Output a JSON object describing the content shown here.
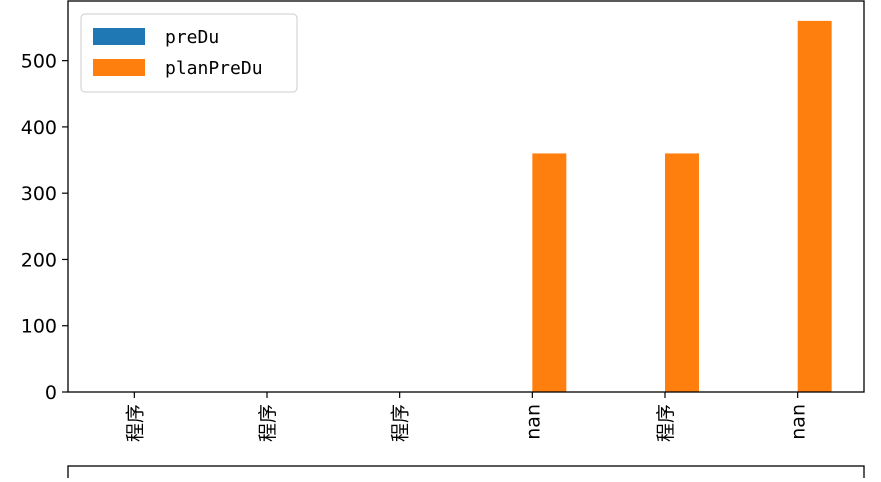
{
  "chart_data": {
    "type": "bar",
    "categories": [
      "程序",
      "程序",
      "程序",
      "nan",
      "程序",
      "nan"
    ],
    "series": [
      {
        "name": "preDu",
        "color": "#1f77b4",
        "values": [
          0,
          0,
          0,
          0,
          0,
          0
        ]
      },
      {
        "name": "planPreDu",
        "color": "#ff7f0e",
        "values": [
          0,
          0,
          0,
          360,
          360,
          560
        ]
      }
    ],
    "yticks": [
      0,
      100,
      200,
      300,
      400,
      500
    ],
    "ylim": [
      0,
      590
    ],
    "grid": false,
    "legend_position": "top-left"
  }
}
